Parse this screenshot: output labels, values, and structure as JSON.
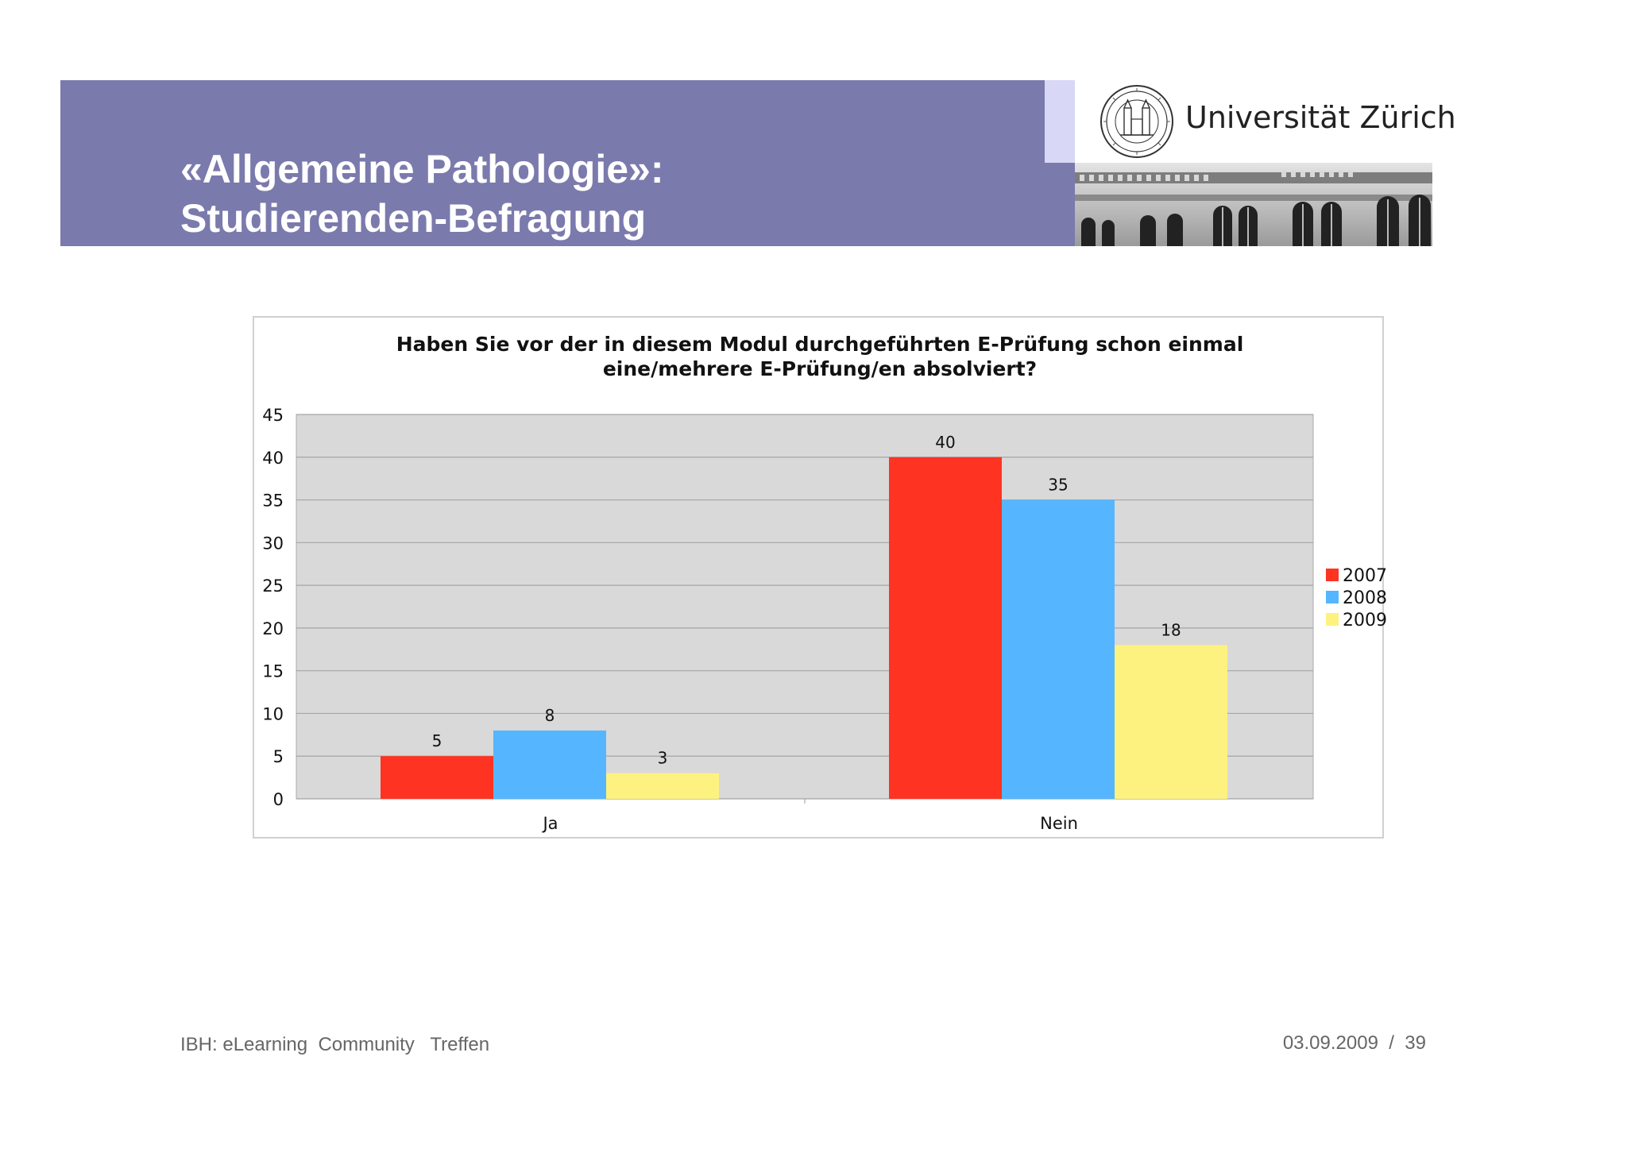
{
  "slide": {
    "title_line1": "«Allgemeine Pathologie»:",
    "title_line2": "Studierenden-Befragung",
    "university_name": "Universität Zürich",
    "footer_left": "IBH: eLearning  Community   Treffen",
    "footer_date": "03.09.2009",
    "footer_separator": "/",
    "page_number": "39"
  },
  "colors": {
    "header_band": "#7b7aad",
    "header_accent": "#d8d7f6",
    "plot_background": "#d9d9d9",
    "series_2007": "#ff3322",
    "series_2008": "#55b6ff",
    "series_2009": "#fdf27f"
  },
  "chart_data": {
    "type": "bar",
    "title_line1": "Haben Sie vor der in diesem Modul durchgeführten E-Prüfung schon einmal",
    "title_line2": "eine/mehrere E-Prüfung/en absolviert?",
    "categories": [
      "Ja",
      "Nein"
    ],
    "series": [
      {
        "name": "2007",
        "color": "#ff3322",
        "values": [
          5,
          40
        ]
      },
      {
        "name": "2008",
        "color": "#55b6ff",
        "values": [
          8,
          35
        ]
      },
      {
        "name": "2009",
        "color": "#fdf27f",
        "values": [
          3,
          18
        ]
      }
    ],
    "data_labels": true,
    "ylim": [
      0,
      45
    ],
    "yticks": [
      0,
      5,
      10,
      15,
      20,
      25,
      30,
      35,
      40,
      45
    ],
    "grid": true,
    "legend": "right"
  }
}
